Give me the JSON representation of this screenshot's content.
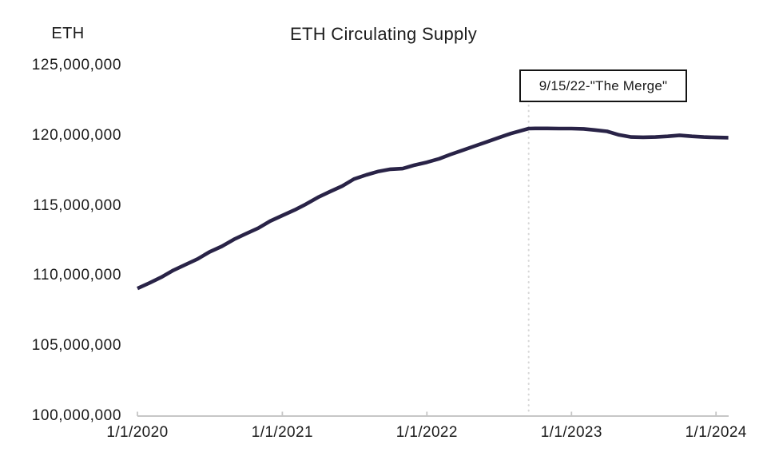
{
  "page": {
    "background_color": "#ffffff",
    "text_color": "#1b1b1b"
  },
  "chart_data": {
    "type": "line",
    "title": "ETH Circulating Supply",
    "y_axis_title": "ETH",
    "xlabel": "",
    "ylabel": "ETH",
    "grid": false,
    "legend_position": "none",
    "line_color": "#292347",
    "axis_color": "#c6c6c6",
    "dotted_line_color": "#d8d8d8",
    "ylim": [
      100000000,
      125000000
    ],
    "x_domain": [
      "1/1/2020",
      "2/1/2024"
    ],
    "y_tick_values": [
      125000000,
      120000000,
      115000000,
      110000000,
      105000000,
      100000000
    ],
    "y_tick_labels": [
      "125,000,000",
      "120,000,000",
      "115,000,000",
      "110,000,000",
      "105,000,000",
      "100,000,000"
    ],
    "x_tick_labels": [
      "1/1/2020",
      "1/1/2021",
      "1/1/2022",
      "1/1/2023",
      "1/1/2024"
    ],
    "annotation": {
      "label": "9/15/22-\"The Merge\"",
      "date": "9/15/2022",
      "style": "vertical-dotted-line-with-boxed-label"
    },
    "series": [
      {
        "name": "ETH Circulating Supply",
        "points": [
          {
            "date": "1/1/2020",
            "value": 109100000
          },
          {
            "date": "2/1/2020",
            "value": 109500000
          },
          {
            "date": "3/1/2020",
            "value": 109900000
          },
          {
            "date": "4/1/2020",
            "value": 110400000
          },
          {
            "date": "5/1/2020",
            "value": 110800000
          },
          {
            "date": "6/1/2020",
            "value": 111200000
          },
          {
            "date": "7/1/2020",
            "value": 111700000
          },
          {
            "date": "8/1/2020",
            "value": 112100000
          },
          {
            "date": "9/1/2020",
            "value": 112600000
          },
          {
            "date": "10/1/2020",
            "value": 113000000
          },
          {
            "date": "11/1/2020",
            "value": 113400000
          },
          {
            "date": "12/1/2020",
            "value": 113900000
          },
          {
            "date": "1/1/2021",
            "value": 114300000
          },
          {
            "date": "2/1/2021",
            "value": 114700000
          },
          {
            "date": "3/1/2021",
            "value": 115100000
          },
          {
            "date": "4/1/2021",
            "value": 115600000
          },
          {
            "date": "5/1/2021",
            "value": 116000000
          },
          {
            "date": "6/1/2021",
            "value": 116400000
          },
          {
            "date": "7/1/2021",
            "value": 116900000
          },
          {
            "date": "8/1/2021",
            "value": 117200000
          },
          {
            "date": "9/1/2021",
            "value": 117450000
          },
          {
            "date": "10/1/2021",
            "value": 117600000
          },
          {
            "date": "11/1/2021",
            "value": 117650000
          },
          {
            "date": "12/1/2021",
            "value": 117900000
          },
          {
            "date": "1/1/2022",
            "value": 118100000
          },
          {
            "date": "2/1/2022",
            "value": 118350000
          },
          {
            "date": "3/1/2022",
            "value": 118650000
          },
          {
            "date": "4/1/2022",
            "value": 118950000
          },
          {
            "date": "5/1/2022",
            "value": 119250000
          },
          {
            "date": "6/1/2022",
            "value": 119550000
          },
          {
            "date": "7/1/2022",
            "value": 119850000
          },
          {
            "date": "8/1/2022",
            "value": 120150000
          },
          {
            "date": "9/15/2022",
            "value": 120500000
          },
          {
            "date": "10/1/2022",
            "value": 120510000
          },
          {
            "date": "11/1/2022",
            "value": 120510000
          },
          {
            "date": "12/1/2022",
            "value": 120500000
          },
          {
            "date": "1/1/2023",
            "value": 120500000
          },
          {
            "date": "2/1/2023",
            "value": 120480000
          },
          {
            "date": "3/1/2023",
            "value": 120400000
          },
          {
            "date": "4/1/2023",
            "value": 120300000
          },
          {
            "date": "5/1/2023",
            "value": 120050000
          },
          {
            "date": "6/1/2023",
            "value": 119900000
          },
          {
            "date": "7/1/2023",
            "value": 119880000
          },
          {
            "date": "8/1/2023",
            "value": 119900000
          },
          {
            "date": "9/1/2023",
            "value": 119950000
          },
          {
            "date": "10/1/2023",
            "value": 120020000
          },
          {
            "date": "11/1/2023",
            "value": 119950000
          },
          {
            "date": "12/1/2023",
            "value": 119900000
          },
          {
            "date": "1/1/2024",
            "value": 119870000
          },
          {
            "date": "2/1/2024",
            "value": 119850000
          }
        ]
      }
    ]
  }
}
